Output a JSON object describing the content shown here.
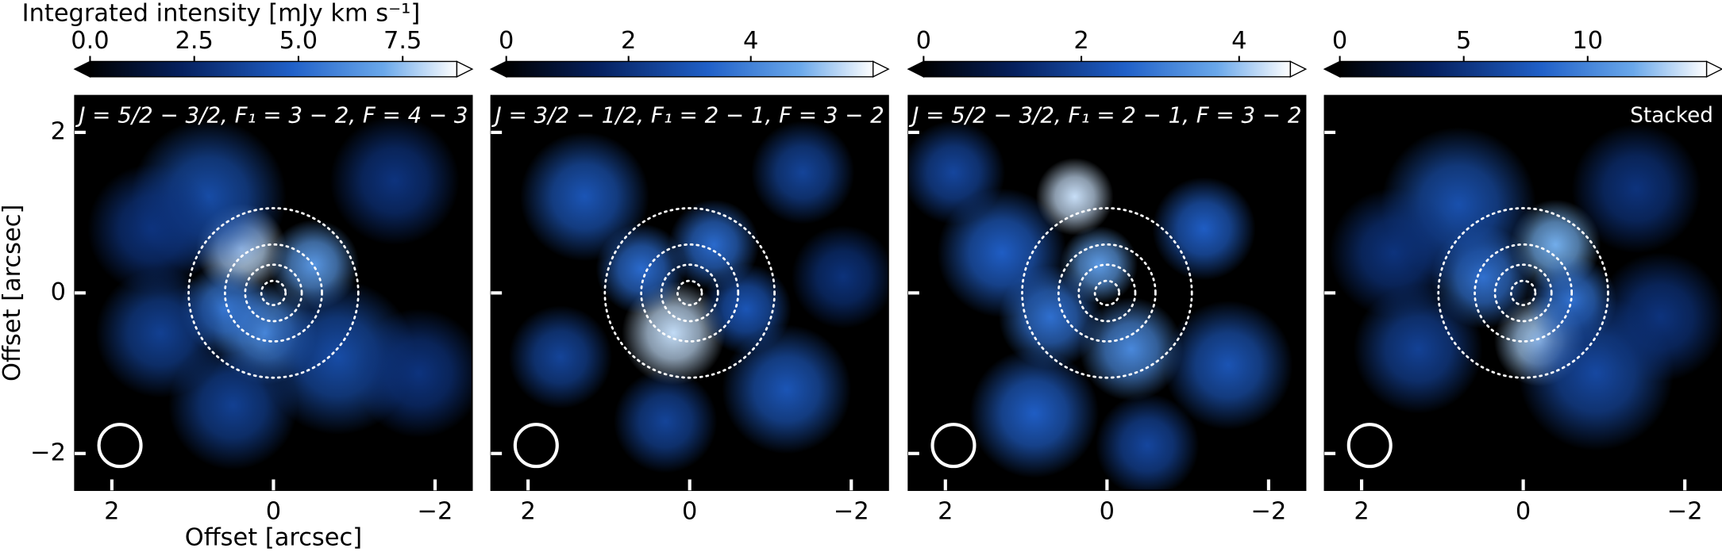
{
  "chart_data": [
    {
      "type": "image",
      "title": "J = 5/2 − 3/2, F₁ = 3 − 2, F = 4 − 3",
      "colorbar_label": "Integrated intensity [mJy km s⁻¹]",
      "xlabel": "Offset [arcsec]",
      "ylabel": "Offset [arcsec]",
      "xlim": [
        2.46,
        -2.46
      ],
      "ylim": [
        -2.46,
        2.46
      ],
      "xticks": [
        2,
        0,
        {
          "value": -2,
          "label": "−2"
        }
      ],
      "yticks": [
        {
          "value": -2,
          "label": "−2"
        },
        0,
        2
      ],
      "clim": [
        0,
        8.8
      ],
      "cticks": [
        {
          "value": 0,
          "label": "0.0"
        },
        2.5,
        {
          "value": 5,
          "label": "5.0"
        },
        7.5
      ],
      "rings": [
        0.15,
        0.35,
        0.6,
        1.05
      ],
      "beam": {
        "x": 1.9,
        "y": -1.9,
        "radius": 0.26
      },
      "blobs": [
        {
          "x": 0.4,
          "y": 0.55,
          "r": 0.35,
          "v": 8
        },
        {
          "x": -0.5,
          "y": 0.35,
          "r": 0.35,
          "v": 6.5
        },
        {
          "x": 0.1,
          "y": -0.5,
          "r": 0.4,
          "v": 6
        },
        {
          "x": 0.6,
          "y": -0.2,
          "r": 0.35,
          "v": 5.5
        },
        {
          "x": 0.8,
          "y": 1.2,
          "r": 0.6,
          "v": 4
        },
        {
          "x": -0.8,
          "y": -0.8,
          "r": 0.6,
          "v": 4
        },
        {
          "x": 1.4,
          "y": -0.5,
          "r": 0.5,
          "v": 3.5
        },
        {
          "x": -1.5,
          "y": 1.4,
          "r": 0.5,
          "v": 3
        },
        {
          "x": 0.5,
          "y": -1.4,
          "r": 0.5,
          "v": 3.5
        },
        {
          "x": -1.8,
          "y": -1.0,
          "r": 0.5,
          "v": 3
        },
        {
          "x": 1.5,
          "y": 0.8,
          "r": 0.5,
          "v": 3
        }
      ]
    },
    {
      "type": "image",
      "title": "J = 3/2 − 1/2, F₁ = 2 − 1, F = 3 − 2",
      "xlim": [
        2.46,
        -2.46
      ],
      "ylim": [
        -2.46,
        2.46
      ],
      "xticks": [
        2,
        0,
        {
          "value": -2,
          "label": "−2"
        }
      ],
      "yticks": [
        -2,
        0,
        2
      ],
      "clim": [
        0,
        6
      ],
      "cticks": [
        0,
        2,
        4
      ],
      "rings": [
        0.15,
        0.35,
        0.6,
        1.05
      ],
      "beam": {
        "x": 1.9,
        "y": -1.9,
        "radius": 0.26
      },
      "blobs": [
        {
          "x": 0.2,
          "y": -0.5,
          "r": 0.4,
          "v": 5.5
        },
        {
          "x": -0.3,
          "y": 0.6,
          "r": 0.35,
          "v": 3.5
        },
        {
          "x": 0.6,
          "y": 0.3,
          "r": 0.35,
          "v": 3.5
        },
        {
          "x": -0.7,
          "y": -0.2,
          "r": 0.35,
          "v": 3
        },
        {
          "x": 1.3,
          "y": 1.2,
          "r": 0.5,
          "v": 3
        },
        {
          "x": -1.4,
          "y": 1.5,
          "r": 0.4,
          "v": 2.5
        },
        {
          "x": -1.2,
          "y": -1.2,
          "r": 0.5,
          "v": 3
        },
        {
          "x": 1.6,
          "y": -0.8,
          "r": 0.4,
          "v": 2.5
        },
        {
          "x": 0.3,
          "y": -1.6,
          "r": 0.4,
          "v": 2.5
        },
        {
          "x": -1.9,
          "y": 0.2,
          "r": 0.4,
          "v": 2
        }
      ]
    },
    {
      "type": "image",
      "title": "J = 5/2 − 3/2, F₁ = 2 − 1, F = 3 − 2",
      "xlim": [
        2.46,
        -2.46
      ],
      "ylim": [
        -2.46,
        2.46
      ],
      "xticks": [
        2,
        0,
        {
          "value": -2,
          "label": "−2"
        }
      ],
      "yticks": [
        -2,
        0,
        2
      ],
      "clim": [
        0,
        4.65
      ],
      "cticks": [
        0,
        2,
        4
      ],
      "rings": [
        0.15,
        0.35,
        0.6,
        1.05
      ],
      "beam": {
        "x": 1.9,
        "y": -1.9,
        "radius": 0.26
      },
      "blobs": [
        {
          "x": 0.4,
          "y": 1.2,
          "r": 0.3,
          "v": 4.3
        },
        {
          "x": 0.1,
          "y": 0.35,
          "r": 0.3,
          "v": 3.5
        },
        {
          "x": -0.3,
          "y": -0.7,
          "r": 0.4,
          "v": 3.2
        },
        {
          "x": 0.7,
          "y": -0.3,
          "r": 0.4,
          "v": 2.8
        },
        {
          "x": 1.3,
          "y": 0.5,
          "r": 0.5,
          "v": 2.5
        },
        {
          "x": -1.2,
          "y": 0.8,
          "r": 0.4,
          "v": 2.5
        },
        {
          "x": -1.5,
          "y": -0.9,
          "r": 0.5,
          "v": 2.3
        },
        {
          "x": 0.9,
          "y": -1.5,
          "r": 0.5,
          "v": 2.5
        },
        {
          "x": 1.9,
          "y": 1.5,
          "r": 0.4,
          "v": 2
        },
        {
          "x": -0.5,
          "y": -1.9,
          "r": 0.4,
          "v": 2
        }
      ]
    },
    {
      "type": "image",
      "title": "Stacked",
      "xlim": [
        2.46,
        -2.46
      ],
      "ylim": [
        -2.46,
        2.46
      ],
      "xticks": [
        2,
        0,
        {
          "value": -2,
          "label": "−2"
        }
      ],
      "yticks": [
        -2,
        0,
        2
      ],
      "clim": [
        0,
        14.8
      ],
      "cticks": [
        0,
        5,
        10
      ],
      "rings": [
        0.15,
        0.35,
        0.6,
        1.05
      ],
      "beam": {
        "x": 1.9,
        "y": -1.9,
        "radius": 0.26
      },
      "blobs": [
        {
          "x": -0.4,
          "y": 0.6,
          "r": 0.35,
          "v": 12
        },
        {
          "x": -0.2,
          "y": -0.6,
          "r": 0.35,
          "v": 13
        },
        {
          "x": 0.5,
          "y": 0.2,
          "r": 0.4,
          "v": 9
        },
        {
          "x": -0.6,
          "y": -0.1,
          "r": 0.35,
          "v": 9
        },
        {
          "x": 0.8,
          "y": 1.1,
          "r": 0.6,
          "v": 7
        },
        {
          "x": -0.9,
          "y": -1.0,
          "r": 0.6,
          "v": 6.5
        },
        {
          "x": 1.3,
          "y": -0.7,
          "r": 0.5,
          "v": 6
        },
        {
          "x": -1.4,
          "y": 1.3,
          "r": 0.5,
          "v": 5
        },
        {
          "x": 1.6,
          "y": 0.5,
          "r": 0.5,
          "v": 5
        },
        {
          "x": -1.7,
          "y": -0.3,
          "r": 0.5,
          "v": 5
        }
      ]
    }
  ]
}
